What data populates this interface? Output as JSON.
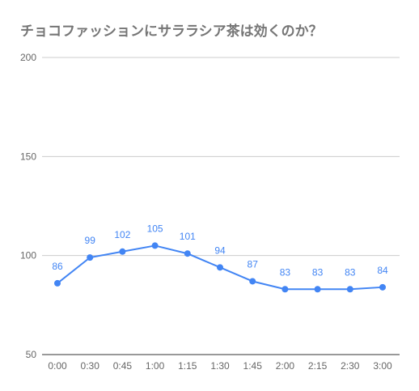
{
  "chart_data": {
    "type": "line",
    "title": "チョコファッションにサララシア茶は効くのか？",
    "categories": [
      "0:00",
      "0:30",
      "0:45",
      "1:00",
      "1:15",
      "1:30",
      "1:45",
      "2:00",
      "2:15",
      "2:30",
      "3:00"
    ],
    "series": [
      {
        "values": [
          86,
          99,
          102,
          105,
          101,
          94,
          87,
          83,
          83,
          83,
          84
        ]
      }
    ],
    "ylim": [
      50,
      200
    ],
    "yticks": [
      50,
      100,
      150,
      200
    ],
    "xlabel": "",
    "ylabel": "",
    "grid": true,
    "data_labels": true,
    "colors": {
      "series": "#4285f4",
      "grid": "#cccccc",
      "axis": "#333333",
      "text": "#666666"
    }
  }
}
